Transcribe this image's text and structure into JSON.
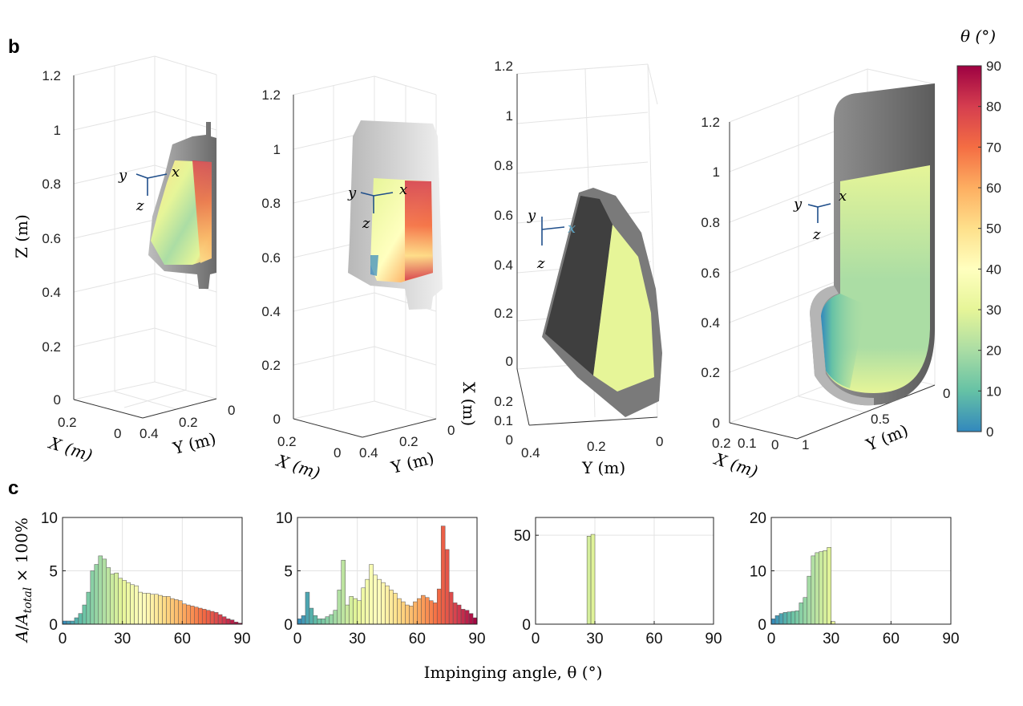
{
  "panel_labels": {
    "b": "b",
    "c": "c"
  },
  "panel_b": {
    "zlabel": "Z (m)",
    "xlabel": "X (m)",
    "ylabel": "Y (m)",
    "colorbar": {
      "label": "θ (°)",
      "ticks": [
        "90",
        "80",
        "70",
        "60",
        "50",
        "40",
        "30",
        "20",
        "10",
        "0"
      ],
      "range": [
        0,
        90
      ],
      "colors": [
        "#9e0142",
        "#d53e4f",
        "#f46d43",
        "#fdae61",
        "#fee08b",
        "#ffffbf",
        "#e6f598",
        "#abdda4",
        "#66c2a5",
        "#3288bd"
      ]
    },
    "views": [
      {
        "z_ticks": [
          "1.2",
          "1",
          "0.8",
          "0.6",
          "0.4",
          "0.2",
          "0"
        ],
        "x_ticks": [
          "0.2",
          "0"
        ],
        "y_ticks": [
          "0.4",
          "0.2",
          "0"
        ],
        "axes": [
          "y",
          "x",
          "z"
        ]
      },
      {
        "z_ticks": [
          "1.2",
          "1",
          "0.8",
          "0.6",
          "0.4",
          "0.2",
          "0"
        ],
        "x_ticks": [
          "0.2",
          "0"
        ],
        "y_ticks": [
          "0.4",
          "0.2",
          "0"
        ],
        "axes": [
          "y",
          "x",
          "z"
        ]
      },
      {
        "z_ticks": [
          "1.2",
          "1",
          "0.8",
          "0.6",
          "0.4",
          "0.2",
          "0"
        ],
        "x_ticks": [
          "0.2",
          "0.1",
          "0"
        ],
        "y_ticks": [
          "0.4",
          "0.2",
          "0"
        ],
        "axes": [
          "y",
          "x",
          "z"
        ]
      },
      {
        "z_ticks": [
          "1.2",
          "1",
          "0.8",
          "0.6",
          "0.4",
          "0.2",
          "0"
        ],
        "x_ticks": [
          "0.2",
          "0.1",
          "0"
        ],
        "y_ticks": [
          "1",
          "0.5",
          "0"
        ],
        "axes": [
          "y",
          "x",
          "z"
        ]
      }
    ]
  },
  "chart_data": [
    {
      "type": "bar",
      "xlabel": "Impinging angle, θ (°)",
      "ylabel": "A/A_total × 100%",
      "xlim": [
        0,
        90
      ],
      "ylim": [
        0,
        10
      ],
      "xticks": [
        "0",
        "30",
        "60",
        "90"
      ],
      "yticks": [
        "0",
        "5",
        "10"
      ],
      "bin_width": 2,
      "x": [
        1,
        3,
        5,
        7,
        9,
        11,
        13,
        15,
        17,
        19,
        21,
        23,
        25,
        27,
        29,
        31,
        33,
        35,
        37,
        39,
        41,
        43,
        45,
        47,
        49,
        51,
        53,
        55,
        57,
        59,
        61,
        63,
        65,
        67,
        69,
        71,
        73,
        75,
        77,
        79,
        81,
        83,
        85,
        87,
        89
      ],
      "values": [
        0.3,
        0.3,
        0.3,
        0.6,
        1.0,
        1.8,
        3.0,
        5.0,
        5.6,
        6.4,
        6.1,
        5.3,
        4.7,
        4.8,
        4.3,
        4.1,
        3.9,
        3.7,
        3.6,
        3.0,
        2.9,
        2.9,
        2.8,
        2.8,
        2.7,
        2.6,
        2.6,
        2.4,
        2.3,
        2.2,
        1.9,
        1.8,
        1.7,
        1.6,
        1.5,
        1.4,
        1.3,
        1.2,
        1.1,
        0.9,
        0.7,
        0.5,
        0.4,
        0.2,
        0.1
      ]
    },
    {
      "type": "bar",
      "xlim": [
        0,
        90
      ],
      "ylim": [
        0,
        10
      ],
      "xticks": [
        "0",
        "30",
        "60",
        "90"
      ],
      "yticks": [
        "0",
        "5",
        "10"
      ],
      "bin_width": 2,
      "x": [
        1,
        3,
        5,
        7,
        9,
        11,
        13,
        15,
        17,
        19,
        21,
        23,
        25,
        27,
        29,
        31,
        33,
        35,
        37,
        39,
        41,
        43,
        45,
        47,
        49,
        51,
        53,
        55,
        57,
        59,
        61,
        63,
        65,
        67,
        69,
        71,
        73,
        75,
        77,
        79,
        81,
        83,
        85,
        87,
        89
      ],
      "values": [
        0.5,
        0.8,
        3.0,
        1.5,
        0.8,
        0.5,
        0.5,
        0.7,
        0.9,
        1.3,
        3.2,
        6.0,
        1.8,
        2.6,
        2.4,
        2.2,
        3.4,
        4.2,
        5.6,
        4.6,
        4.2,
        3.9,
        3.6,
        3.2,
        2.9,
        2.4,
        2.1,
        1.8,
        1.7,
        2.1,
        2.4,
        2.7,
        2.5,
        2.2,
        2.0,
        3.3,
        9.2,
        7.0,
        3.0,
        2.0,
        1.8,
        1.4,
        1.3,
        1.0,
        0.6
      ]
    },
    {
      "type": "bar",
      "xlim": [
        0,
        90
      ],
      "ylim": [
        0,
        60
      ],
      "xticks": [
        "0",
        "30",
        "60",
        "90"
      ],
      "yticks": [
        "0",
        "50"
      ],
      "bin_width": 2,
      "x": [
        27,
        29
      ],
      "values": [
        49.5,
        50.5
      ]
    },
    {
      "type": "bar",
      "xlim": [
        0,
        90
      ],
      "ylim": [
        0,
        20
      ],
      "xticks": [
        "0",
        "30",
        "60",
        "90"
      ],
      "yticks": [
        "0",
        "10",
        "20"
      ],
      "bin_width": 2,
      "x": [
        1,
        3,
        5,
        7,
        9,
        11,
        13,
        15,
        17,
        19,
        21,
        23,
        25,
        27,
        29,
        31
      ],
      "values": [
        1.0,
        1.6,
        2.0,
        2.2,
        2.3,
        2.4,
        2.5,
        4.0,
        5.0,
        9.0,
        12.8,
        13.4,
        13.6,
        13.8,
        14.4,
        0.5
      ]
    }
  ]
}
